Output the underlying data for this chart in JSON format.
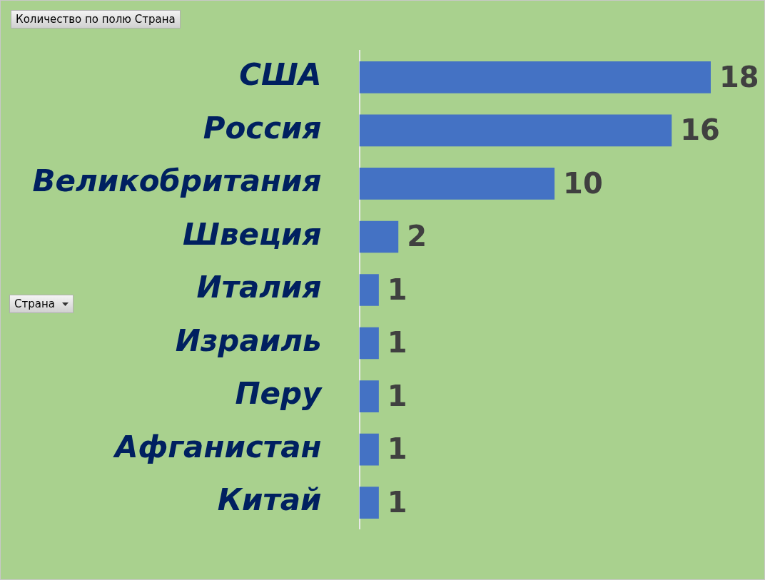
{
  "chart_data": {
    "type": "bar",
    "orientation": "horizontal",
    "categories": [
      "США",
      "Россия",
      "Великобритания",
      "Швеция",
      "Италия",
      "Израиль",
      "Перу",
      "Афганистан",
      "Китай"
    ],
    "values": [
      18,
      16,
      10,
      2,
      1,
      1,
      1,
      1,
      1
    ],
    "color": "#4472c4",
    "data_labels": true,
    "annotations": [
      "Количество по полю Страна",
      "Страна"
    ]
  }
}
